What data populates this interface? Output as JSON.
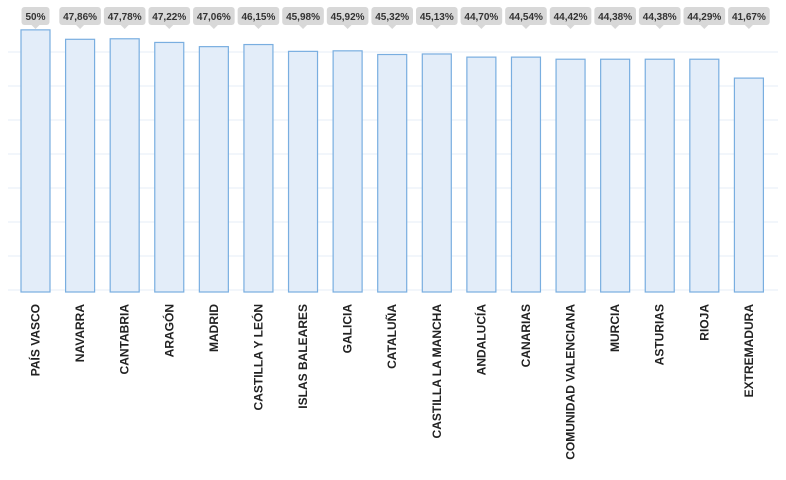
{
  "chart_data": {
    "type": "bar",
    "categories": [
      "PAÍS VASCO",
      "NAVARRA",
      "CANTABRIA",
      "ARAGÓN",
      "MADRID",
      "CASTILLA Y LEÓN",
      "ISLAS BALEARES",
      "GALICIA",
      "CATALUÑA",
      "CASTILLA LA MANCHA",
      "ANDALUCÍA",
      "CANARIAS",
      "COMUNIDAD VALENCIANA",
      "MURCIA",
      "ASTURIAS",
      "RIOJA",
      "EXTREMADURA"
    ],
    "values": [
      50,
      47.86,
      47.78,
      47.22,
      47.06,
      46.15,
      45.98,
      45.92,
      45.32,
      45.13,
      44.7,
      44.54,
      44.42,
      44.38,
      44.38,
      44.29,
      41.67
    ],
    "bar_heights_relative": [
      50,
      48.2,
      48.3,
      47.6,
      46.8,
      47.2,
      45.9,
      46.0,
      45.3,
      45.4,
      44.8,
      44.8,
      44.4,
      44.4,
      44.4,
      44.4,
      40.8
    ],
    "data_labels": [
      "50%",
      "47,86%",
      "47,78%",
      "47,22%",
      "47,06%",
      "46,15%",
      "45,98%",
      "45,92%",
      "45,32%",
      "45,13%",
      "44,70%",
      "44,54%",
      "44,42%",
      "44,38%",
      "44,38%",
      "44,29%",
      "41,67%"
    ],
    "ylim": [
      0,
      51.5
    ],
    "grid": true,
    "colors": {
      "bar_fill": "#e3edf9",
      "bar_stroke": "#79aee0",
      "label_bg": "#d8d8d8",
      "label_text": "#333333",
      "grid": "#e6eef7",
      "axis_text": "#222222"
    }
  }
}
